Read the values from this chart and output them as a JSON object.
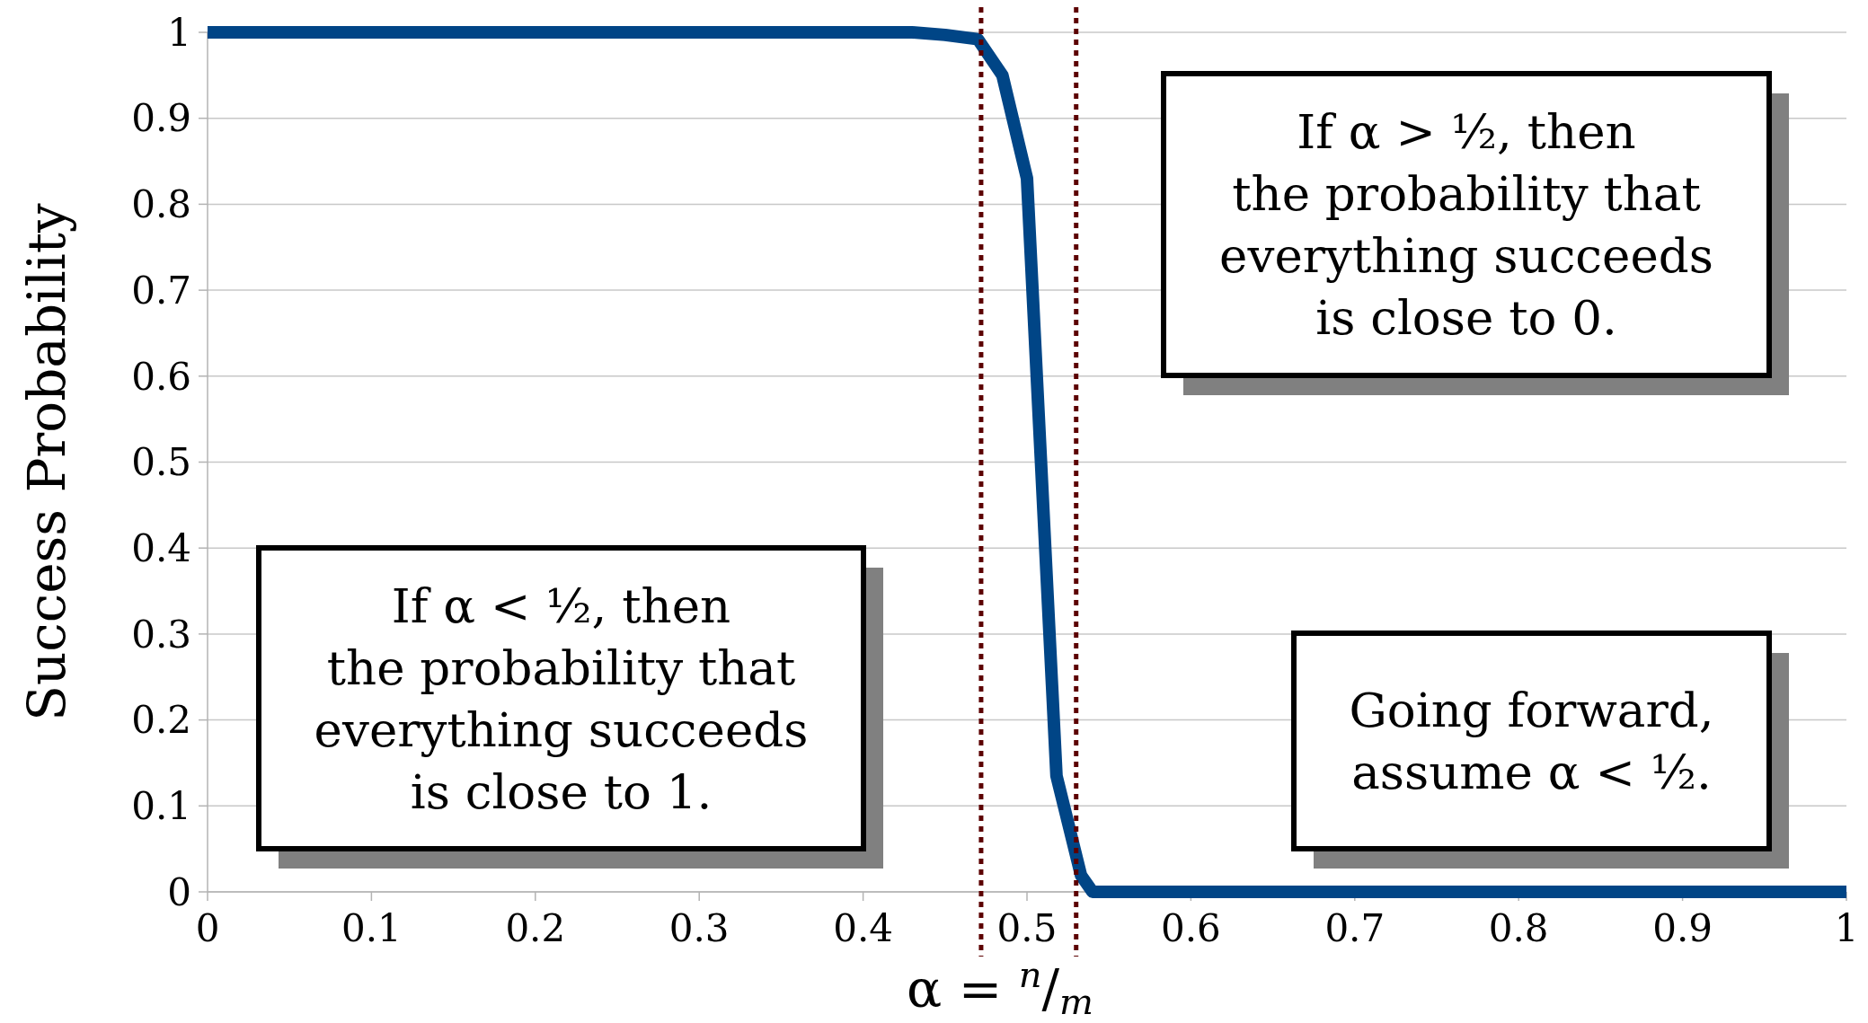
{
  "chart_data": {
    "type": "line",
    "xlabel": "α = $^{n}$/$_{m}$",
    "ylabel": "Success Probability",
    "series": [
      {
        "color": "#004586",
        "x": [
          0,
          0.43,
          0.45,
          0.47,
          0.485,
          0.5,
          0.518,
          0.533,
          0.54,
          0.55,
          1
        ],
        "values": [
          1,
          1,
          0.997,
          0.992,
          0.95,
          0.83,
          0.135,
          0.019,
          0,
          0,
          0
        ]
      }
    ],
    "xlim": [
      0,
      1
    ],
    "xticks": [
      0,
      0.1,
      0.2,
      0.3,
      0.4,
      0.5,
      0.6,
      0.7,
      0.8,
      0.9,
      1
    ],
    "ylim": [
      0,
      1
    ],
    "yticks": [
      0,
      0.1,
      0.2,
      0.3,
      0.4,
      0.5,
      0.6,
      0.7,
      0.8,
      0.9,
      1
    ],
    "grid": "y",
    "marker": "none",
    "line_style": "solid",
    "ref_lines": [
      {
        "axis": "x",
        "value": 0.472,
        "color": "#5c0000",
        "line_style": "dotted"
      },
      {
        "axis": "x",
        "value": 0.53,
        "color": "#5c0000",
        "line_style": "dotted"
      }
    ],
    "annotations": [
      "If α > ½, then\nthe probability that\neverything succeeds\nis close to 0.",
      "If α < ½, then\nthe probability that\neverything succeeds\nis close to 1.",
      "Going forward,\nassume α < ½."
    ]
  }
}
